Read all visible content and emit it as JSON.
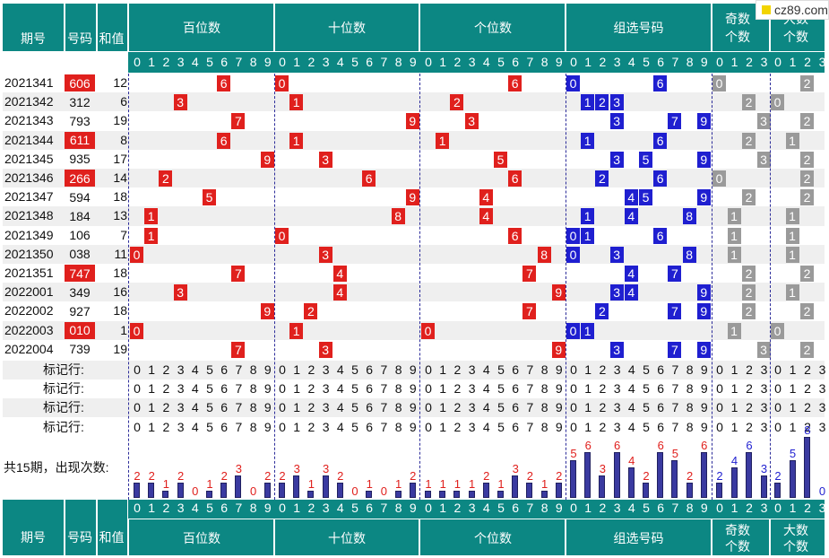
{
  "header": {
    "period": "期号",
    "number": "号码",
    "sum": "和值",
    "hundreds": "百位数",
    "tens": "十位数",
    "units": "个位数",
    "group": "组选号码",
    "odd": "奇数个数",
    "big": "大数个数"
  },
  "watermark": "cz89.com",
  "rows": [
    {
      "period": "2021341",
      "num": "606",
      "sum": "12",
      "red": true,
      "h": 6,
      "t": 0,
      "u": 6,
      "g": [
        0,
        6
      ],
      "odd": 0,
      "big": 2
    },
    {
      "period": "2021342",
      "num": "312",
      "sum": "6",
      "red": false,
      "h": 3,
      "t": 1,
      "u": 2,
      "g": [
        1,
        2,
        3
      ],
      "odd": 2,
      "big": 0
    },
    {
      "period": "2021343",
      "num": "793",
      "sum": "19",
      "red": false,
      "h": 7,
      "t": 9,
      "u": 3,
      "g": [
        3,
        7,
        9
      ],
      "odd": 3,
      "big": 2
    },
    {
      "period": "2021344",
      "num": "611",
      "sum": "8",
      "red": true,
      "h": 6,
      "t": 1,
      "u": 1,
      "g": [
        1,
        6
      ],
      "odd": 2,
      "big": 1
    },
    {
      "period": "2021345",
      "num": "935",
      "sum": "17",
      "red": false,
      "h": 9,
      "t": 3,
      "u": 5,
      "g": [
        3,
        5,
        9
      ],
      "odd": 3,
      "big": 2
    },
    {
      "period": "2021346",
      "num": "266",
      "sum": "14",
      "red": true,
      "h": 2,
      "t": 6,
      "u": 6,
      "g": [
        2,
        6
      ],
      "odd": 0,
      "big": 2
    },
    {
      "period": "2021347",
      "num": "594",
      "sum": "18",
      "red": false,
      "h": 5,
      "t": 9,
      "u": 4,
      "g": [
        4,
        5,
        9
      ],
      "odd": 2,
      "big": 2
    },
    {
      "period": "2021348",
      "num": "184",
      "sum": "13",
      "red": false,
      "h": 1,
      "t": 8,
      "u": 4,
      "g": [
        1,
        4,
        8
      ],
      "odd": 1,
      "big": 1
    },
    {
      "period": "2021349",
      "num": "106",
      "sum": "7",
      "red": false,
      "h": 1,
      "t": 0,
      "u": 6,
      "g": [
        0,
        1,
        6
      ],
      "odd": 1,
      "big": 1
    },
    {
      "period": "2021350",
      "num": "038",
      "sum": "11",
      "red": false,
      "h": 0,
      "t": 3,
      "u": 8,
      "g": [
        0,
        3,
        8
      ],
      "odd": 1,
      "big": 1
    },
    {
      "period": "2021351",
      "num": "747",
      "sum": "18",
      "red": true,
      "h": 7,
      "t": 4,
      "u": 7,
      "g": [
        4,
        7
      ],
      "odd": 2,
      "big": 2
    },
    {
      "period": "2022001",
      "num": "349",
      "sum": "16",
      "red": false,
      "h": 3,
      "t": 4,
      "u": 9,
      "g": [
        3,
        4,
        9
      ],
      "odd": 2,
      "big": 1
    },
    {
      "period": "2022002",
      "num": "927",
      "sum": "18",
      "red": false,
      "h": 9,
      "t": 2,
      "u": 7,
      "g": [
        2,
        7,
        9
      ],
      "odd": 2,
      "big": 2
    },
    {
      "period": "2022003",
      "num": "010",
      "sum": "1",
      "red": true,
      "h": 0,
      "t": 1,
      "u": 0,
      "g": [
        0,
        1
      ],
      "odd": 1,
      "big": 0
    },
    {
      "period": "2022004",
      "num": "739",
      "sum": "19",
      "red": false,
      "h": 7,
      "t": 3,
      "u": 9,
      "g": [
        3,
        7,
        9
      ],
      "odd": 3,
      "big": 2
    }
  ],
  "marker_label": "标记行:",
  "count_label": "共15期，出现次数:",
  "counts": {
    "h": [
      2,
      2,
      1,
      2,
      0,
      1,
      2,
      3,
      0,
      2
    ],
    "t": [
      2,
      3,
      1,
      3,
      2,
      0,
      1,
      0,
      1,
      2
    ],
    "u": [
      1,
      1,
      1,
      1,
      2,
      1,
      3,
      2,
      1,
      2
    ],
    "g": [
      5,
      6,
      3,
      6,
      4,
      2,
      6,
      5,
      2,
      6
    ],
    "odd": [
      2,
      4,
      6,
      3
    ],
    "big": [
      2,
      5,
      8,
      0
    ]
  }
}
